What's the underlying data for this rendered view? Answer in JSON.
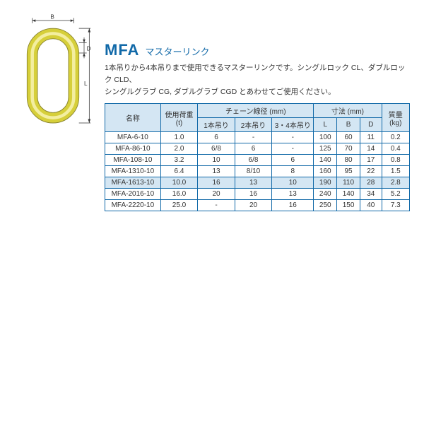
{
  "colors": {
    "brand": "#1169a8",
    "text": "#333333",
    "tableBorder": "#1169a8",
    "headerBg": "#d4e6f3",
    "white": "#ffffff"
  },
  "title": {
    "code": "MFA",
    "jp": "マスターリンク"
  },
  "description": {
    "line1": "1本吊りから4本吊りまで使用できるマスターリンクです。シングルロック CL、ダブルロック CLD、",
    "line2": "シングルグラブ CG, ダブルグラブ CGD とあわせてご使用ください。"
  },
  "diagram": {
    "labelB": "B",
    "labelD": "D",
    "labelL": "L"
  },
  "table": {
    "headers": {
      "name": "名称",
      "wll_top": "使用荷重",
      "wll_unit": "(t)",
      "chain_group": "チェーン線径 (mm)",
      "chain1": "1本吊り",
      "chain2": "2本吊り",
      "chain3": "3・4本吊り",
      "dim_group": "寸法 (mm)",
      "dimL": "L",
      "dimB": "B",
      "dimD": "D",
      "mass_top": "質量",
      "mass_unit": "(kg)"
    },
    "rows": [
      {
        "name": "MFA-6-10",
        "wll": "1.0",
        "c1": "6",
        "c2": "-",
        "c3": "-",
        "L": "100",
        "B": "60",
        "D": "11",
        "m": "0.2"
      },
      {
        "name": "MFA-86-10",
        "wll": "2.0",
        "c1": "6/8",
        "c2": "6",
        "c3": "-",
        "L": "125",
        "B": "70",
        "D": "14",
        "m": "0.4"
      },
      {
        "name": "MFA-108-10",
        "wll": "3.2",
        "c1": "10",
        "c2": "6/8",
        "c3": "6",
        "L": "140",
        "B": "80",
        "D": "17",
        "m": "0.8"
      },
      {
        "name": "MFA-1310-10",
        "wll": "6.4",
        "c1": "13",
        "c2": "8/10",
        "c3": "8",
        "L": "160",
        "B": "95",
        "D": "22",
        "m": "1.5"
      }
    ],
    "highlightRow": {
      "name": "MFA-1613-10",
      "wll": "10.0",
      "c1": "16",
      "c2": "13",
      "c3": "10",
      "L": "190",
      "B": "110",
      "D": "28",
      "m": "2.8"
    },
    "rowsAfter": [
      {
        "name": "MFA-2016-10",
        "wll": "16.0",
        "c1": "20",
        "c2": "16",
        "c3": "13",
        "L": "240",
        "B": "140",
        "D": "34",
        "m": "5.2"
      },
      {
        "name": "MFA-2220-10",
        "wll": "25.0",
        "c1": "-",
        "c2": "20",
        "c3": "16",
        "L": "250",
        "B": "150",
        "D": "40",
        "m": "7.3"
      }
    ]
  }
}
